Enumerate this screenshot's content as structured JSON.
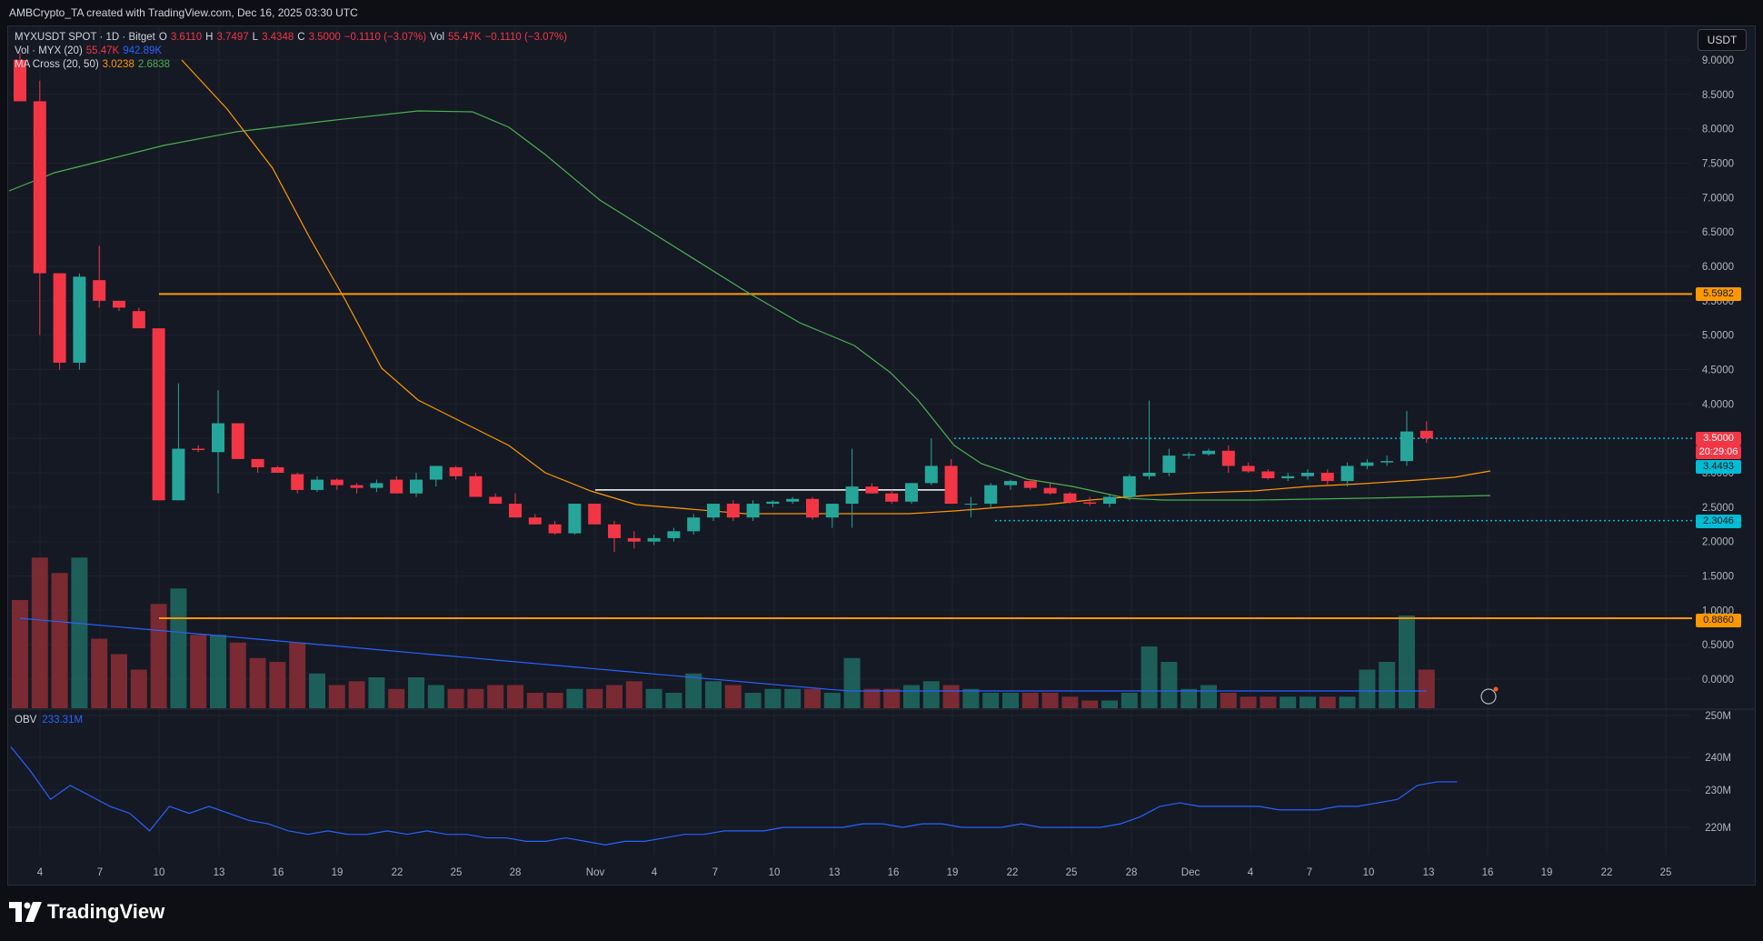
{
  "header": {
    "credit": "AMBCrypto_TA created with TradingView.com, Dec 16, 2025 03:30 UTC"
  },
  "legend": {
    "symbol": "MYXUSDT SPOT · 1D · Bitget",
    "o_label": "O",
    "o_value": "3.6110",
    "h_label": "H",
    "h_value": "3.7497",
    "l_label": "L",
    "l_value": "3.4348",
    "c_label": "C",
    "c_value": "3.5000",
    "change": "−0.1110 (−3.07%)",
    "vol_label": "Vol",
    "vol_value": "55.47K",
    "vol_change": "−0.1110 (−3.07%)",
    "vol_ind_label": "Vol · MYX (20)",
    "vol_ind_v1": "55.47K",
    "vol_ind_v2": "942.89K",
    "ma_label": "MA Cross (20, 50)",
    "ma_v1": "3.0238",
    "ma_v2": "2.6838"
  },
  "obv": {
    "label": "OBV",
    "value": "233.31M",
    "ticks": [
      "250M",
      "240M",
      "230M",
      "220M"
    ]
  },
  "toolbar": {
    "currency_label": "USDT"
  },
  "price_tags": {
    "upper_resistance": "5.5982",
    "last_price": "3.5000",
    "countdown": "20:29:06",
    "ma_tag": "3.4493",
    "support": "2.3046",
    "lower_support": "0.8860"
  },
  "colors": {
    "up": "#26a69a",
    "down": "#f23645",
    "ma_fast": "#ff9800",
    "ma_slow": "#4caf50",
    "vol_ma": "#2962ff",
    "obv_line": "#2962ff",
    "level_line": "#ff9800",
    "dotted_line": "#00bcd4"
  },
  "branding": {
    "logo_text": "TradingView"
  },
  "chart_data": {
    "type": "candlestick",
    "y_axis_ticks": [
      "9.0000",
      "8.5000",
      "8.0000",
      "7.5000",
      "7.0000",
      "6.5000",
      "6.0000",
      "5.5000",
      "5.0000",
      "4.5000",
      "4.0000",
      "3.5000",
      "3.0000",
      "2.5000",
      "2.0000",
      "1.5000",
      "1.0000",
      "0.5000",
      "0.0000"
    ],
    "x_axis_ticks": [
      "4",
      "7",
      "10",
      "13",
      "16",
      "19",
      "22",
      "25",
      "28",
      "Nov",
      "4",
      "7",
      "10",
      "13",
      "16",
      "19",
      "22",
      "25",
      "28",
      "Dec",
      "4",
      "7",
      "10",
      "13",
      "16",
      "19",
      "22",
      "25"
    ],
    "horizontal_levels": [
      5.5982,
      0.886
    ],
    "dotted_levels": [
      3.5,
      2.3046
    ],
    "candles_ohlc": [
      [
        9.0,
        9.1,
        8.4,
        8.4
      ],
      [
        8.4,
        8.7,
        5.0,
        5.9
      ],
      [
        5.9,
        5.9,
        4.5,
        4.6
      ],
      [
        4.6,
        5.9,
        4.5,
        5.85
      ],
      [
        5.8,
        6.3,
        5.4,
        5.5
      ],
      [
        5.5,
        5.5,
        5.35,
        5.4
      ],
      [
        5.35,
        5.4,
        5.1,
        5.1
      ],
      [
        5.1,
        5.1,
        2.6,
        2.6
      ],
      [
        2.6,
        4.3,
        2.6,
        3.35
      ],
      [
        3.35,
        3.4,
        3.3,
        3.33
      ],
      [
        3.3,
        4.2,
        2.7,
        3.72
      ],
      [
        3.72,
        3.72,
        3.2,
        3.2
      ],
      [
        3.2,
        3.2,
        3.0,
        3.08
      ],
      [
        3.08,
        3.1,
        3.0,
        3.0
      ],
      [
        2.98,
        3.0,
        2.7,
        2.75
      ],
      [
        2.75,
        2.95,
        2.72,
        2.9
      ],
      [
        2.9,
        2.92,
        2.75,
        2.82
      ],
      [
        2.82,
        2.85,
        2.7,
        2.78
      ],
      [
        2.78,
        2.9,
        2.72,
        2.85
      ],
      [
        2.9,
        2.95,
        2.7,
        2.7
      ],
      [
        2.7,
        3.0,
        2.65,
        2.9
      ],
      [
        2.9,
        3.1,
        2.8,
        3.1
      ],
      [
        3.08,
        3.1,
        2.9,
        2.95
      ],
      [
        2.95,
        3.0,
        2.65,
        2.65
      ],
      [
        2.65,
        2.7,
        2.55,
        2.55
      ],
      [
        2.55,
        2.7,
        2.35,
        2.35
      ],
      [
        2.35,
        2.4,
        2.25,
        2.25
      ],
      [
        2.25,
        2.3,
        2.1,
        2.12
      ],
      [
        2.12,
        2.55,
        2.1,
        2.55
      ],
      [
        2.55,
        2.55,
        2.25,
        2.25
      ],
      [
        2.25,
        2.3,
        1.85,
        2.05
      ],
      [
        2.05,
        2.15,
        1.9,
        2.0
      ],
      [
        2.0,
        2.1,
        1.95,
        2.05
      ],
      [
        2.05,
        2.2,
        2.0,
        2.15
      ],
      [
        2.15,
        2.4,
        2.1,
        2.35
      ],
      [
        2.35,
        2.55,
        2.3,
        2.55
      ],
      [
        2.55,
        2.6,
        2.3,
        2.35
      ],
      [
        2.35,
        2.6,
        2.3,
        2.55
      ],
      [
        2.55,
        2.6,
        2.5,
        2.58
      ],
      [
        2.58,
        2.65,
        2.55,
        2.62
      ],
      [
        2.62,
        2.65,
        2.32,
        2.35
      ],
      [
        2.35,
        2.55,
        2.2,
        2.55
      ],
      [
        2.55,
        3.35,
        2.2,
        2.8
      ],
      [
        2.8,
        2.85,
        2.7,
        2.7
      ],
      [
        2.7,
        2.75,
        2.55,
        2.58
      ],
      [
        2.58,
        2.85,
        2.55,
        2.85
      ],
      [
        2.85,
        3.5,
        2.82,
        3.1
      ],
      [
        3.1,
        3.2,
        2.55,
        2.55
      ],
      [
        2.55,
        2.65,
        2.35,
        2.55
      ],
      [
        2.55,
        2.85,
        2.5,
        2.82
      ],
      [
        2.82,
        2.9,
        2.75,
        2.88
      ],
      [
        2.88,
        2.9,
        2.75,
        2.78
      ],
      [
        2.78,
        2.85,
        2.68,
        2.7
      ],
      [
        2.7,
        2.72,
        2.55,
        2.57
      ],
      [
        2.57,
        2.65,
        2.52,
        2.55
      ],
      [
        2.55,
        2.68,
        2.5,
        2.65
      ],
      [
        2.65,
        2.98,
        2.6,
        2.95
      ],
      [
        2.95,
        4.05,
        2.9,
        3.0
      ],
      [
        3.0,
        3.35,
        2.95,
        3.25
      ],
      [
        3.25,
        3.3,
        3.2,
        3.27
      ],
      [
        3.27,
        3.35,
        3.25,
        3.32
      ],
      [
        3.32,
        3.4,
        3.0,
        3.1
      ],
      [
        3.1,
        3.15,
        3.0,
        3.02
      ],
      [
        3.02,
        3.05,
        2.9,
        2.92
      ],
      [
        2.92,
        3.0,
        2.88,
        2.95
      ],
      [
        2.95,
        3.05,
        2.9,
        3.0
      ],
      [
        3.0,
        3.05,
        2.8,
        2.88
      ],
      [
        2.88,
        3.15,
        2.8,
        3.1
      ],
      [
        3.1,
        3.2,
        3.05,
        3.15
      ],
      [
        3.15,
        3.25,
        3.1,
        3.17
      ],
      [
        3.17,
        3.9,
        3.1,
        3.6
      ],
      [
        3.61,
        3.7497,
        3.4348,
        3.5
      ]
    ]
  }
}
